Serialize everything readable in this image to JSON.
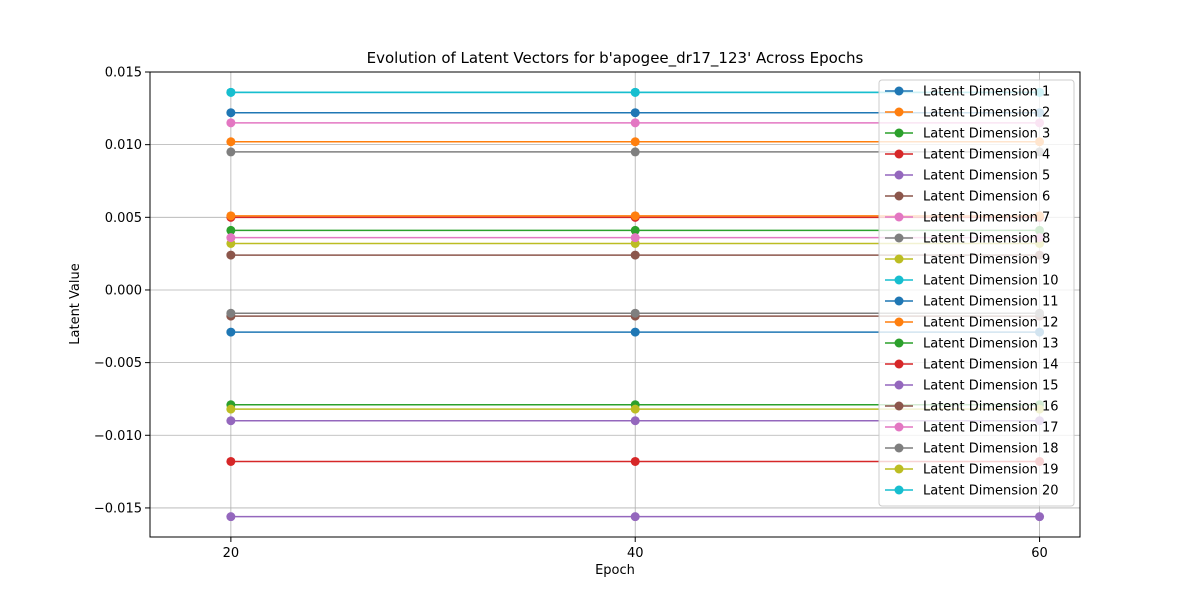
{
  "chart_data": {
    "type": "line",
    "title": "Evolution of Latent Vectors for b'apogee_dr17_123' Across Epochs",
    "xlabel": "Epoch",
    "ylabel": "Latent Value",
    "x": [
      20,
      40,
      60
    ],
    "x_ticks": [
      "20",
      "40",
      "60"
    ],
    "xlim": [
      16,
      62
    ],
    "ylim": [
      -0.017,
      0.015
    ],
    "y_ticks": [
      -0.015,
      -0.01,
      -0.005,
      0.0,
      0.005,
      0.01,
      0.015
    ],
    "y_tick_labels": [
      "−0.015",
      "−0.010",
      "−0.005",
      "0.000",
      "0.005",
      "0.010",
      "0.015"
    ],
    "grid": true,
    "legend_position": "top-right",
    "series": [
      {
        "name": "Latent Dimension 1",
        "color": "#1f77b4",
        "values": [
          0.0122,
          0.0122,
          0.0122
        ]
      },
      {
        "name": "Latent Dimension 2",
        "color": "#ff7f0e",
        "values": [
          0.0102,
          0.0102,
          0.0102
        ]
      },
      {
        "name": "Latent Dimension 3",
        "color": "#2ca02c",
        "values": [
          0.0041,
          0.0041,
          0.0041
        ]
      },
      {
        "name": "Latent Dimension 4",
        "color": "#d62728",
        "values": [
          0.005,
          0.005,
          0.005
        ]
      },
      {
        "name": "Latent Dimension 5",
        "color": "#9467bd",
        "values": [
          -0.0156,
          -0.0156,
          -0.0156
        ]
      },
      {
        "name": "Latent Dimension 6",
        "color": "#8c564b",
        "values": [
          0.0024,
          0.0024,
          0.0024
        ]
      },
      {
        "name": "Latent Dimension 7",
        "color": "#e377c2",
        "values": [
          0.0115,
          0.0115,
          0.0115
        ]
      },
      {
        "name": "Latent Dimension 8",
        "color": "#7f7f7f",
        "values": [
          0.0095,
          0.0095,
          0.0095
        ]
      },
      {
        "name": "Latent Dimension 9",
        "color": "#bcbd22",
        "values": [
          0.0032,
          0.0032,
          0.0032
        ]
      },
      {
        "name": "Latent Dimension 10",
        "color": "#17becf",
        "values": [
          0.0136,
          0.0136,
          0.0136
        ]
      },
      {
        "name": "Latent Dimension 11",
        "color": "#1f77b4",
        "values": [
          -0.0029,
          -0.0029,
          -0.0029
        ]
      },
      {
        "name": "Latent Dimension 12",
        "color": "#ff7f0e",
        "values": [
          0.0051,
          0.0051,
          0.0051
        ]
      },
      {
        "name": "Latent Dimension 13",
        "color": "#2ca02c",
        "values": [
          -0.0079,
          -0.0079,
          -0.0079
        ]
      },
      {
        "name": "Latent Dimension 14",
        "color": "#d62728",
        "values": [
          -0.0118,
          -0.0118,
          -0.0118
        ]
      },
      {
        "name": "Latent Dimension 15",
        "color": "#9467bd",
        "values": [
          -0.009,
          -0.009,
          -0.009
        ]
      },
      {
        "name": "Latent Dimension 16",
        "color": "#8c564b",
        "values": [
          -0.0018,
          -0.0018,
          -0.0018
        ]
      },
      {
        "name": "Latent Dimension 17",
        "color": "#e377c2",
        "values": [
          0.0036,
          0.0036,
          0.0036
        ]
      },
      {
        "name": "Latent Dimension 18",
        "color": "#7f7f7f",
        "values": [
          -0.0016,
          -0.0016,
          -0.0016
        ]
      },
      {
        "name": "Latent Dimension 19",
        "color": "#bcbd22",
        "values": [
          -0.0082,
          -0.0082,
          -0.0082
        ]
      },
      {
        "name": "Latent Dimension 20",
        "color": "#17becf",
        "values": [
          0.0136,
          0.0136,
          0.0136
        ]
      }
    ]
  }
}
